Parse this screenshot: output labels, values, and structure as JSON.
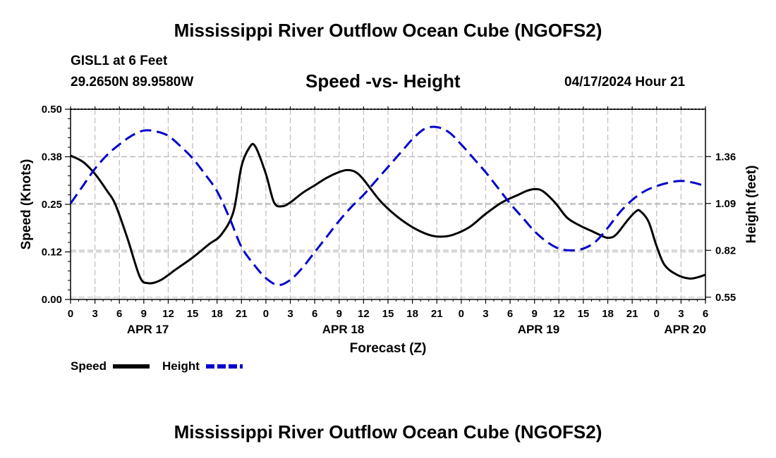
{
  "page": {
    "title": "Mississippi River Outflow Ocean Cube (NGOFS2)",
    "title_repeat": "Mississippi River Outflow Ocean Cube (NGOFS2)",
    "station": "GISL1 at 6 Feet",
    "coords": "29.2650N  89.9580W",
    "subtitle": "Speed -vs- Height",
    "datetime": "04/17/2024 Hour 21"
  },
  "chart_data": {
    "type": "line",
    "title": "Speed -vs- Height",
    "xlabel": "Forecast (Z)",
    "ylabel": "Speed (Knots)",
    "y2label": "Height (feet)",
    "x_unit": "hours since 2024-04-17 00Z",
    "xlim": [
      0,
      78
    ],
    "ylim": [
      0,
      0.5
    ],
    "y2lim": [
      0.537,
      1.633
    ],
    "grid": true,
    "legend_position": "bottom-left",
    "x_ticks": [
      {
        "h": 0,
        "label": "0"
      },
      {
        "h": 3,
        "label": "3"
      },
      {
        "h": 6,
        "label": "6"
      },
      {
        "h": 9,
        "label": "9"
      },
      {
        "h": 12,
        "label": "12"
      },
      {
        "h": 15,
        "label": "15"
      },
      {
        "h": 18,
        "label": "18"
      },
      {
        "h": 21,
        "label": "21"
      },
      {
        "h": 24,
        "label": "0"
      },
      {
        "h": 27,
        "label": "3"
      },
      {
        "h": 30,
        "label": "6"
      },
      {
        "h": 33,
        "label": "9"
      },
      {
        "h": 36,
        "label": "12"
      },
      {
        "h": 39,
        "label": "15"
      },
      {
        "h": 42,
        "label": "18"
      },
      {
        "h": 45,
        "label": "21"
      },
      {
        "h": 48,
        "label": "0"
      },
      {
        "h": 51,
        "label": "3"
      },
      {
        "h": 54,
        "label": "6"
      },
      {
        "h": 57,
        "label": "9"
      },
      {
        "h": 60,
        "label": "12"
      },
      {
        "h": 63,
        "label": "15"
      },
      {
        "h": 66,
        "label": "18"
      },
      {
        "h": 69,
        "label": "21"
      },
      {
        "h": 72,
        "label": "0"
      },
      {
        "h": 75,
        "label": "3"
      },
      {
        "h": 78,
        "label": "6"
      }
    ],
    "date_labels": [
      {
        "h": 9.5,
        "label": "APR 17"
      },
      {
        "h": 33.5,
        "label": "APR 18"
      },
      {
        "h": 57.5,
        "label": "APR 19"
      },
      {
        "h": 75.5,
        "label": "APR 20"
      }
    ],
    "y_ticks": [
      {
        "v": 0.0,
        "label": "0.00"
      },
      {
        "v": 0.125,
        "label": "0.12"
      },
      {
        "v": 0.25,
        "label": "0.25"
      },
      {
        "v": 0.375,
        "label": "0.38"
      },
      {
        "v": 0.5,
        "label": "0.50"
      }
    ],
    "y2_ticks": [
      {
        "v": 0.55,
        "label": "0.55"
      },
      {
        "v": 0.82,
        "label": "0.82"
      },
      {
        "v": 1.09,
        "label": "1.09"
      },
      {
        "v": 1.36,
        "label": "1.36"
      }
    ],
    "series": [
      {
        "name": "Speed",
        "axis": "left",
        "color": "#000000",
        "dash": "solid",
        "x": [
          0,
          1.5,
          3,
          4.5,
          5.5,
          7,
          8.5,
          9.5,
          11,
          13,
          15,
          17,
          18.5,
          20,
          21,
          22,
          22.7,
          24,
          25,
          26,
          27,
          28.5,
          30,
          31.5,
          33,
          34,
          35,
          36,
          38,
          40,
          42,
          44,
          45.5,
          47,
          49,
          51,
          53,
          55,
          56,
          57,
          58,
          59.5,
          61,
          62.5,
          64,
          65,
          66,
          67,
          68.5,
          69.5,
          70,
          71,
          72,
          73,
          74.5,
          76,
          77,
          78
        ],
        "values": [
          0.378,
          0.362,
          0.33,
          0.285,
          0.25,
          0.16,
          0.06,
          0.043,
          0.05,
          0.08,
          0.11,
          0.145,
          0.17,
          0.23,
          0.35,
          0.4,
          0.402,
          0.33,
          0.255,
          0.245,
          0.255,
          0.28,
          0.3,
          0.32,
          0.335,
          0.34,
          0.335,
          0.315,
          0.26,
          0.22,
          0.19,
          0.17,
          0.165,
          0.17,
          0.19,
          0.225,
          0.255,
          0.275,
          0.285,
          0.29,
          0.285,
          0.255,
          0.215,
          0.195,
          0.18,
          0.17,
          0.162,
          0.17,
          0.21,
          0.232,
          0.232,
          0.205,
          0.14,
          0.09,
          0.065,
          0.055,
          0.058,
          0.065
        ]
      },
      {
        "name": "Height",
        "axis": "right",
        "color": "#0000cc",
        "dash": "dashed",
        "x": [
          0,
          1.5,
          3,
          4.5,
          6,
          7.5,
          9,
          10.5,
          12,
          13.5,
          15,
          16.5,
          18,
          19.5,
          21,
          22.5,
          24,
          25.5,
          27,
          28.5,
          30,
          31.5,
          33,
          34.5,
          36,
          37.5,
          39,
          40.5,
          42,
          43.5,
          45,
          46.5,
          48,
          49.5,
          51,
          52.5,
          54,
          55.5,
          57,
          58.5,
          60,
          61.5,
          63,
          64.5,
          66,
          67.5,
          69,
          70.5,
          72,
          73.5,
          75,
          76.5,
          78
        ],
        "values": [
          1.09,
          1.19,
          1.29,
          1.37,
          1.43,
          1.48,
          1.51,
          1.505,
          1.48,
          1.42,
          1.35,
          1.26,
          1.16,
          1.01,
          0.84,
          0.74,
          0.66,
          0.62,
          0.65,
          0.72,
          0.81,
          0.9,
          0.99,
          1.07,
          1.14,
          1.22,
          1.3,
          1.38,
          1.46,
          1.52,
          1.53,
          1.5,
          1.43,
          1.35,
          1.27,
          1.18,
          1.09,
          1.01,
          0.93,
          0.87,
          0.83,
          0.82,
          0.83,
          0.87,
          0.95,
          1.04,
          1.11,
          1.16,
          1.19,
          1.21,
          1.22,
          1.21,
          1.19
        ]
      }
    ]
  }
}
